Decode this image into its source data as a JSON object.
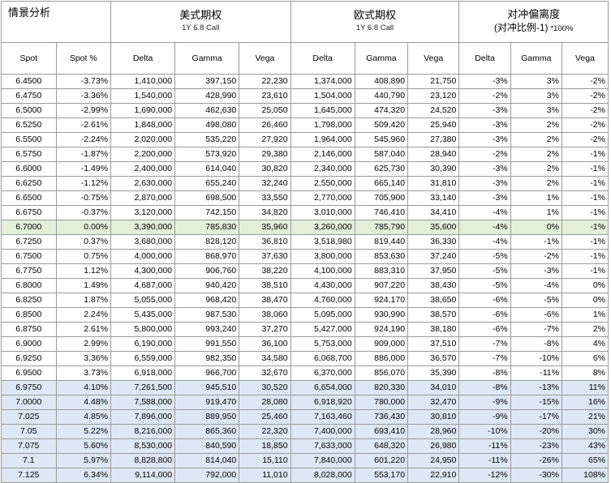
{
  "header": {
    "corner": "情景分析",
    "american": {
      "title": "美式期权",
      "sub": "1Y 6.8 Call"
    },
    "european": {
      "title": "欧式期权",
      "sub": "1Y 6.8 Call"
    },
    "deviation": {
      "title": "对冲偏离度",
      "sub": "(对冲比例-1)",
      "note": "*100%"
    }
  },
  "columns": [
    "Spot",
    "Spot %",
    "Delta",
    "Gamma",
    "Vega",
    "Delta",
    "Gamma",
    "Vega",
    "Delta",
    "Gamma",
    "Vega"
  ],
  "colors": {
    "atm_row": "#e2efd9",
    "extreme_rows": "#dde8f4",
    "grid": "#9a9a9a"
  },
  "rows": [
    [
      "6.4500",
      "-3.73%",
      "1,410,000",
      "397,150",
      "22,230",
      "1,374,000",
      "408,890",
      "21,750",
      "-3%",
      "3%",
      "-2%"
    ],
    [
      "6.4750",
      "-3.36%",
      "1,540,000",
      "428,990",
      "23,610",
      "1,504,000",
      "440,790",
      "23,120",
      "-2%",
      "3%",
      "-2%"
    ],
    [
      "6.5000",
      "-2.99%",
      "1,690,000",
      "462,630",
      "25,050",
      "1,645,000",
      "474,320",
      "24,520",
      "-3%",
      "3%",
      "-2%"
    ],
    [
      "6.5250",
      "-2.61%",
      "1,848,000",
      "498,080",
      "26,460",
      "1,798,000",
      "509,420",
      "25,940",
      "-3%",
      "2%",
      "-2%"
    ],
    [
      "6.5500",
      "-2.24%",
      "2,020,000",
      "535,220",
      "27,920",
      "1,964,000",
      "545,960",
      "27,380",
      "-3%",
      "2%",
      "-2%"
    ],
    [
      "6.5750",
      "-1.87%",
      "2,200,000",
      "573,920",
      "29,380",
      "2,146,000",
      "587,040",
      "28,940",
      "-2%",
      "2%",
      "-1%"
    ],
    [
      "6.6000",
      "-1.49%",
      "2,400,000",
      "614,040",
      "30,820",
      "2,340,000",
      "625,730",
      "30,390",
      "-3%",
      "2%",
      "-1%"
    ],
    [
      "6.6250",
      "-1.12%",
      "2,630,000",
      "655,240",
      "32,240",
      "2,550,000",
      "665,140",
      "31,810",
      "-3%",
      "2%",
      "-1%"
    ],
    [
      "6.6500",
      "-0.75%",
      "2,870,000",
      "698,500",
      "33,550",
      "2,770,000",
      "705,900",
      "33,140",
      "-3%",
      "1%",
      "-1%"
    ],
    [
      "6.6750",
      "-0.37%",
      "3,120,000",
      "742,150",
      "34,820",
      "3,010,000",
      "746,410",
      "34,410",
      "-4%",
      "1%",
      "-1%"
    ],
    [
      "6.7000",
      "0.00%",
      "3,390,000",
      "785,830",
      "35,960",
      "3,260,000",
      "785,790",
      "35,600",
      "-4%",
      "0%",
      "-1%"
    ],
    [
      "6.7250",
      "0.37%",
      "3,680,000",
      "828,120",
      "36,810",
      "3,518,980",
      "819,440",
      "36,330",
      "-4%",
      "-1%",
      "-1%"
    ],
    [
      "6.7500",
      "0.75%",
      "4,000,000",
      "868,970",
      "37,630",
      "3,800,000",
      "853,630",
      "37,240",
      "-5%",
      "-2%",
      "-1%"
    ],
    [
      "6.7750",
      "1.12%",
      "4,300,000",
      "906,760",
      "38,220",
      "4,100,000",
      "883,310",
      "37,950",
      "-5%",
      "-3%",
      "-1%"
    ],
    [
      "6.8000",
      "1.49%",
      "4,687,000",
      "940,420",
      "38,510",
      "4,430,000",
      "907,220",
      "38,430",
      "-5%",
      "-4%",
      "0%"
    ],
    [
      "6.8250",
      "1.87%",
      "5,055,000",
      "968,420",
      "38,470",
      "4,760,000",
      "924,170",
      "38,650",
      "-6%",
      "-5%",
      "0%"
    ],
    [
      "6.8500",
      "2.24%",
      "5,435,000",
      "987,530",
      "38,060",
      "5,095,000",
      "930,990",
      "38,570",
      "-6%",
      "-6%",
      "1%"
    ],
    [
      "6.8750",
      "2.61%",
      "5,800,000",
      "993,240",
      "37,270",
      "5,427,000",
      "924,190",
      "38,180",
      "-6%",
      "-7%",
      "2%"
    ],
    [
      "6.9000",
      "2.99%",
      "6,190,000",
      "991,550",
      "36,100",
      "5,753,000",
      "909,000",
      "37,510",
      "-7%",
      "-8%",
      "4%"
    ],
    [
      "6.9250",
      "3.36%",
      "6,559,000",
      "982,350",
      "34,580",
      "6,068,700",
      "886,000",
      "36,570",
      "-7%",
      "-10%",
      "6%"
    ],
    [
      "6.9500",
      "3.73%",
      "6,918,000",
      "966,700",
      "32,670",
      "6,370,000",
      "856,070",
      "35,390",
      "-8%",
      "-11%",
      "8%"
    ],
    [
      "6.9750",
      "4.10%",
      "7,261,500",
      "945,510",
      "30,520",
      "6,654,000",
      "820,330",
      "34,010",
      "-8%",
      "-13%",
      "11%"
    ],
    [
      "7.0000",
      "4.48%",
      "7,588,000",
      "919,470",
      "28,080",
      "6,918,920",
      "780,000",
      "32,470",
      "-9%",
      "-15%",
      "16%"
    ],
    [
      "7.025",
      "4.85%",
      "7,896,000",
      "889,950",
      "25,460",
      "7,163,460",
      "736,430",
      "30,810",
      "-9%",
      "-17%",
      "21%"
    ],
    [
      "7.05",
      "5.22%",
      "8,216,000",
      "865,360",
      "22,320",
      "7,400,000",
      "693,410",
      "28,960",
      "-10%",
      "-20%",
      "30%"
    ],
    [
      "7.075",
      "5.60%",
      "8,530,000",
      "840,590",
      "18,850",
      "7,633,000",
      "648,320",
      "26,980",
      "-11%",
      "-23%",
      "43%"
    ],
    [
      "7.1",
      "5.97%",
      "8,828,800",
      "814,040",
      "15,110",
      "7,840,000",
      "601,220",
      "24,950",
      "-11%",
      "-26%",
      "65%"
    ],
    [
      "7.125",
      "6.34%",
      "9,114,000",
      "792,000",
      "11,010",
      "8,028,000",
      "553,170",
      "22,910",
      "-12%",
      "-30%",
      "108%"
    ]
  ]
}
